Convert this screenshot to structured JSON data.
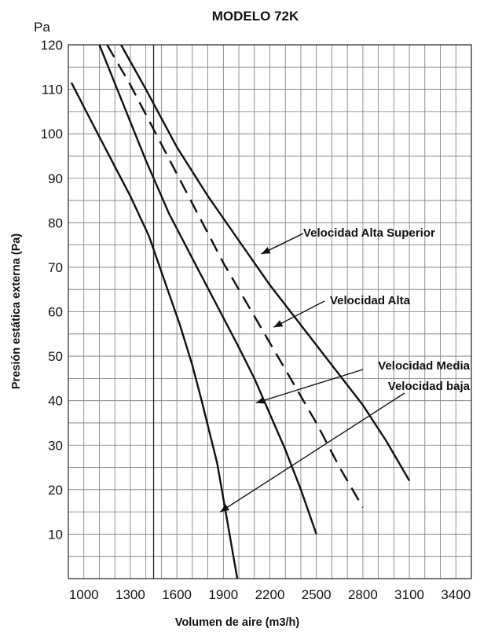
{
  "chart_data": {
    "type": "line",
    "title": "MODELO 72K",
    "y_unit": "Pa",
    "xlabel": "Volumen de aire (m3/h)",
    "ylabel": "Presión estática externa (Pa)",
    "xlim": [
      900,
      3500
    ],
    "ylim": [
      0,
      120
    ],
    "x_ticks": [
      "1000",
      "1300",
      "1600",
      "1900",
      "2200",
      "2500",
      "2800",
      "3100",
      "3400"
    ],
    "y_ticks": [
      "10",
      "20",
      "30",
      "40",
      "50",
      "60",
      "70",
      "80",
      "90",
      "100",
      "110",
      "120"
    ],
    "grid": true,
    "series": [
      {
        "name": "Velocidad baja",
        "style": "solid",
        "x": [
          920,
          1030,
          1150,
          1300,
          1420,
          1530,
          1620,
          1700,
          1760,
          1810,
          1860,
          1900,
          1940,
          1970,
          1990
        ],
        "y": [
          111.5,
          104,
          96,
          86,
          77,
          66,
          57,
          48,
          40,
          33,
          26,
          18,
          10,
          4,
          0
        ]
      },
      {
        "name": "Velocidad Media",
        "style": "solid",
        "x": [
          1100,
          1250,
          1400,
          1550,
          1700,
          1850,
          2000,
          2100,
          2200,
          2300,
          2400,
          2500
        ],
        "y": [
          120,
          107,
          94,
          82,
          72,
          62,
          52,
          45,
          37,
          29,
          20,
          10
        ]
      },
      {
        "name": "Velocidad Alta",
        "style": "dashed",
        "x": [
          1150,
          1300,
          1450,
          1600,
          1750,
          1900,
          2050,
          2200,
          2350,
          2500,
          2650,
          2800
        ],
        "y": [
          120,
          111,
          101,
          91,
          81,
          71,
          62,
          53,
          44,
          35,
          25,
          16
        ]
      },
      {
        "name": "Velocidad Alta Superior",
        "style": "solid",
        "x": [
          1240,
          1400,
          1600,
          1800,
          2000,
          2200,
          2400,
          2600,
          2800,
          2950,
          3100
        ],
        "y": [
          120,
          110,
          97,
          86,
          76,
          66,
          57,
          48,
          39,
          31,
          22
        ]
      }
    ],
    "annotations": [
      {
        "text": "Velocidad Alta Superior",
        "series": "Velocidad Alta Superior",
        "point": [
          2145,
          73
        ]
      },
      {
        "text": "Velocidad Alta",
        "series": "Velocidad Alta",
        "point": [
          2225,
          56.5
        ]
      },
      {
        "text": "Velocidad Media",
        "series": "Velocidad Media",
        "point": [
          2110,
          39.5
        ]
      },
      {
        "text": "Velocidad baja",
        "series": "Velocidad baja",
        "point": [
          1880,
          15
        ]
      }
    ]
  }
}
